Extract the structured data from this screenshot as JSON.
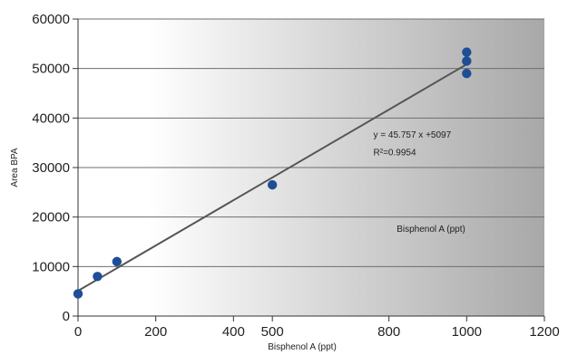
{
  "chart_data": {
    "type": "scatter",
    "title": "",
    "xlabel": "Bisphenol A (ppt)",
    "ylabel": "Area BPA",
    "xlim": [
      0,
      1200
    ],
    "ylim": [
      0,
      60000
    ],
    "x_ticks": [
      0,
      200,
      400,
      500,
      800,
      1000,
      1200
    ],
    "y_ticks": [
      0,
      10000,
      20000,
      30000,
      40000,
      50000,
      60000
    ],
    "grid": "horizontal",
    "background": "gradient white-to-gray",
    "series": [
      {
        "points": [
          {
            "x": 0,
            "y": 4500
          },
          {
            "x": 50,
            "y": 8000
          },
          {
            "x": 100,
            "y": 11000
          },
          {
            "x": 500,
            "y": 26500
          },
          {
            "x": 1000,
            "y": 49000
          },
          {
            "x": 1000,
            "y": 51500
          },
          {
            "x": 1000,
            "y": 53300
          }
        ],
        "color": "#1f4e96"
      }
    ],
    "trendline": {
      "type": "linear",
      "slope": 45.757,
      "intercept": 5097,
      "x_range": [
        0,
        1000
      ],
      "color": "#555555"
    },
    "annotations": [
      {
        "text": "y = 45.757 x +5097",
        "x": 760,
        "y": 36000
      },
      {
        "text": "R²=0.9954",
        "x": 760,
        "y": 32500
      },
      {
        "text": "Bisphenol A (ppt)",
        "x": 820,
        "y": 17000
      }
    ]
  }
}
